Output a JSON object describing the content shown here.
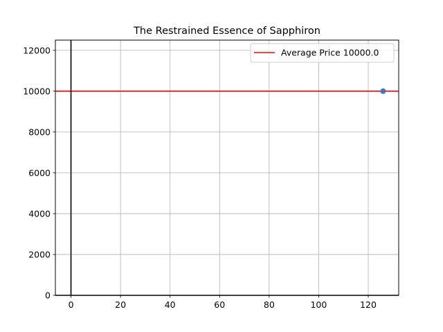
{
  "chart_data": {
    "type": "scatter",
    "title": "The Restrained Essence of Sapphiron",
    "xlabel": "",
    "ylabel": "",
    "xlim": [
      -6.3,
      132.3
    ],
    "ylim": [
      0,
      12500
    ],
    "xticks": [
      0,
      20,
      40,
      60,
      80,
      100,
      120
    ],
    "yticks": [
      0,
      2000,
      4000,
      6000,
      8000,
      10000,
      12000
    ],
    "grid": true,
    "series": [
      {
        "points": [
          {
            "x": 126,
            "y": 10000
          }
        ],
        "color": "#4c72b0"
      }
    ],
    "reference_lines": [
      {
        "orientation": "horizontal",
        "value": 10000,
        "color": "#ff0000",
        "label": "Average Price 10000.0"
      },
      {
        "orientation": "vertical",
        "value": 0,
        "color": "#000000"
      },
      {
        "orientation": "horizontal",
        "value": 0,
        "color": "#000000"
      }
    ],
    "legend": {
      "position": "top-right",
      "entries": [
        "Average Price 10000.0"
      ]
    }
  }
}
